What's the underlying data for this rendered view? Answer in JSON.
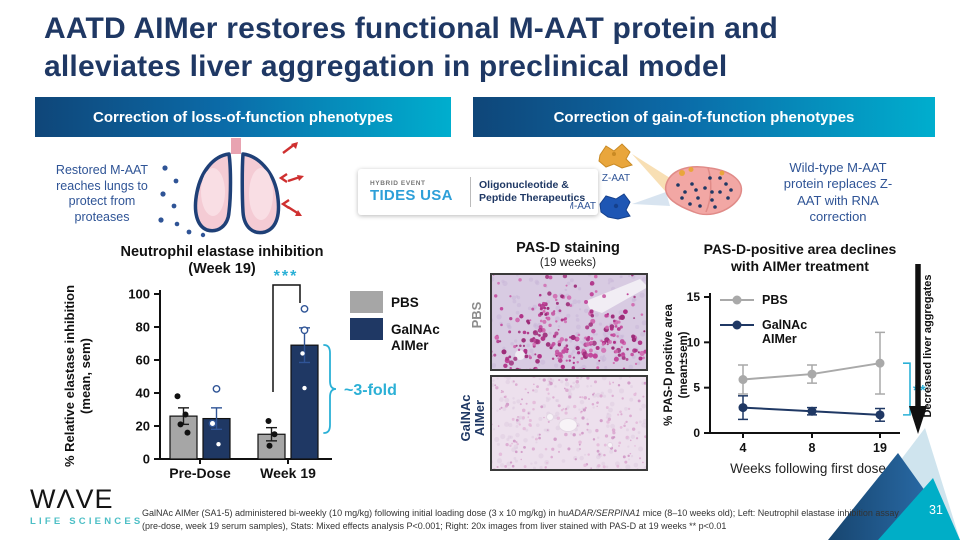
{
  "slide": {
    "title_line1": "AATD AIMer restores functional M-AAT protein and",
    "title_line2": "alleviates liver aggregation in preclinical model",
    "page_number": "31"
  },
  "banners": {
    "loss": "Correction of loss-of-function phenotypes",
    "gain": "Correction of gain-of-function phenotypes"
  },
  "loss_section": {
    "caption": "Restored M-AAT reaches lungs to protect from proteases"
  },
  "tides_logo": {
    "event_type": "HYBRID EVENT",
    "name": "TIDES USA",
    "tagline_line1": "Oligonucleotide &",
    "tagline_line2": "Peptide Therapeutics"
  },
  "gain_section": {
    "z_label": "Z-AAT",
    "m_label": "M-AAT",
    "caption": "Wild-type M-AAT protein replaces Z-AAT with RNA correction"
  },
  "histology": {
    "title": "PAS-D staining",
    "subtitle": "(19 weeks)",
    "rows": [
      {
        "label": "PBS",
        "label_color": "#8C8C8C"
      },
      {
        "label": "GalNAc AIMer",
        "label_color": "#1F3864"
      }
    ],
    "images": [
      {
        "bg": "#D8CBE2",
        "cell_color": "#C7B6D8",
        "dot_colors": [
          "#AE2E84",
          "#C1469A",
          "#D066AE",
          "#9C2B78"
        ],
        "density": "dense"
      },
      {
        "bg": "#EDE0ED",
        "cell_color": "#DEC9DF",
        "dot_colors": [
          "#D9A4CE",
          "#CE93C3",
          "#E3B7D8"
        ],
        "density": "sparse"
      }
    ]
  },
  "arrow_label": "Decreased liver aggregates",
  "chart_data": [
    {
      "id": "neutrophil-elastase-bar",
      "type": "bar",
      "title": "Neutrophil elastase inhibition",
      "subtitle": "(Week 19)",
      "ylabel_lines": [
        "% Relative elastase inhibition",
        "(mean, sem)"
      ],
      "ylim": [
        0,
        100
      ],
      "yticks": [
        0,
        20,
        40,
        60,
        80,
        100
      ],
      "categories": [
        "Pre-Dose",
        "Week 19"
      ],
      "series": [
        {
          "name": "PBS",
          "color": "#A6A6A6",
          "values": [
            26,
            15
          ],
          "sem": [
            5,
            4
          ],
          "points": [
            [
              38,
              27,
              21,
              16
            ],
            [
              23,
              15,
              8
            ]
          ]
        },
        {
          "name": "GalNAc AIMer",
          "color": "#1F3864",
          "values": [
            24.5,
            69
          ],
          "sem": [
            6.5,
            10.5
          ],
          "points": [
            [
              42.5,
              21.5,
              9
            ],
            [
              91,
              78,
              64,
              43
            ]
          ]
        }
      ],
      "significance": "***",
      "annotation": "~3-fold",
      "accent_color": "#2BB0D6"
    },
    {
      "id": "pasd-positive-line",
      "type": "line",
      "title_lines": [
        "PAS-D-positive area declines",
        "with AIMer treatment"
      ],
      "ylabel_lines": [
        "% PAS-D positive area",
        "(mean±sem)"
      ],
      "xlabel": "Weeks following first dose",
      "ylim": [
        0,
        15
      ],
      "yticks": [
        0,
        5,
        10,
        15
      ],
      "x": [
        4,
        8,
        19
      ],
      "series": [
        {
          "name": "PBS",
          "color": "#A9A9A9",
          "values": [
            5.9,
            6.5,
            7.7
          ],
          "sem": [
            1.6,
            1.0,
            3.4
          ]
        },
        {
          "name": "GalNAc AIMer",
          "color": "#1F3864",
          "values": [
            2.8,
            2.4,
            2.0
          ],
          "sem": [
            1.3,
            0.4,
            0.7
          ]
        }
      ],
      "significance": "**",
      "accent_color": "#2BB0D6"
    }
  ],
  "footnote": {
    "part1": "GalNAc AIMer (SA1-5) administered bi-weekly (10 mg/kg) following initial loading dose (3 x 10 mg/kg) in hu",
    "italic": "ADAR/SERPINA1",
    "part2": " mice (8–10 weeks old); Left: Neutrophil elastase inhibition assay (pre-dose, week 19 serum samples), Stats: Mixed effects analysis P<0.001; Right: 20x images from liver stained with PAS-D at 19 weeks ** p<0.01"
  },
  "brand": {
    "wordmark": "WΛVE",
    "subtext": "LIFE SCIENCES"
  }
}
